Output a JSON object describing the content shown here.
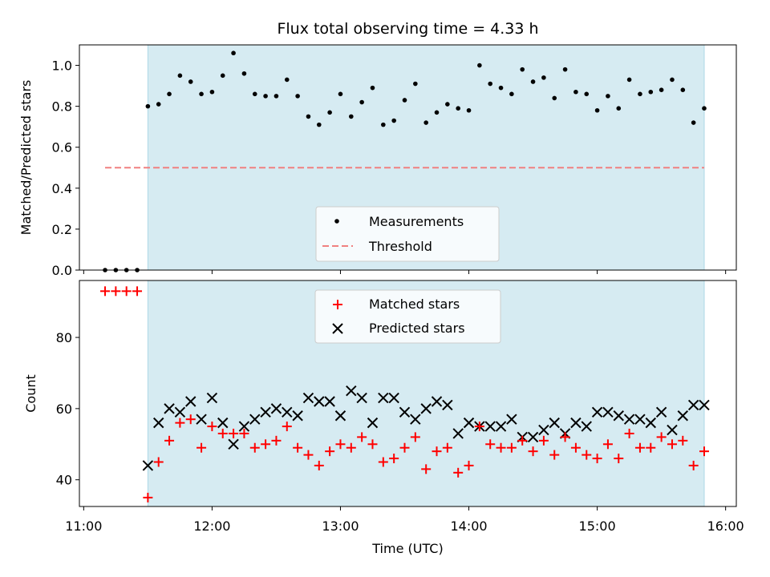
{
  "chart_data": [
    {
      "type": "scatter",
      "title": "Flux total observing time = 4.33 h",
      "ylabel": "Matched/Predicted stars",
      "xlim": [
        "10:58",
        "16:05"
      ],
      "ylim": [
        0,
        1.1
      ],
      "yticks": [
        0.0,
        0.2,
        0.4,
        0.6,
        0.8,
        1.0
      ],
      "yticklabels": [
        "0.0",
        "0.2",
        "0.4",
        "0.6",
        "0.8",
        "1.0"
      ],
      "shaded_span": [
        "11:30",
        "15:50"
      ],
      "shade_color": "#add8e6",
      "legend_loc": "lower center",
      "threshold": {
        "name": "Threshold",
        "value": 0.5,
        "x_range": [
          "11:10",
          "15:50"
        ],
        "color": "#f08080"
      },
      "series": [
        {
          "name": "Measurements",
          "color": "#000000",
          "x": [
            "11:10",
            "11:15",
            "11:20",
            "11:25",
            "11:30",
            "11:35",
            "11:40",
            "11:45",
            "11:50",
            "11:55",
            "12:00",
            "12:05",
            "12:10",
            "12:15",
            "12:20",
            "12:25",
            "12:30",
            "12:35",
            "12:40",
            "12:45",
            "12:50",
            "12:55",
            "13:00",
            "13:05",
            "13:10",
            "13:15",
            "13:20",
            "13:25",
            "13:30",
            "13:35",
            "13:40",
            "13:45",
            "13:50",
            "13:55",
            "14:00",
            "14:05",
            "14:10",
            "14:15",
            "14:20",
            "14:25",
            "14:30",
            "14:35",
            "14:40",
            "14:45",
            "14:50",
            "14:55",
            "15:00",
            "15:05",
            "15:10",
            "15:15",
            "15:20",
            "15:25",
            "15:30",
            "15:35",
            "15:40",
            "15:45",
            "15:50"
          ],
          "y": [
            0.0,
            0.0,
            0.0,
            0.0,
            0.8,
            0.81,
            0.86,
            0.95,
            0.92,
            0.86,
            0.87,
            0.95,
            1.06,
            0.96,
            0.86,
            0.85,
            0.85,
            0.93,
            0.85,
            0.75,
            0.71,
            0.77,
            0.86,
            0.75,
            0.82,
            0.89,
            0.71,
            0.73,
            0.83,
            0.91,
            0.72,
            0.77,
            0.81,
            0.79,
            0.78,
            1.0,
            0.91,
            0.89,
            0.86,
            0.98,
            0.92,
            0.94,
            0.84,
            0.98,
            0.87,
            0.86,
            0.78,
            0.85,
            0.79,
            0.93,
            0.86,
            0.87,
            0.88,
            0.93,
            0.88,
            0.72,
            0.79
          ]
        }
      ]
    },
    {
      "type": "scatter",
      "xlabel": "Time (UTC)",
      "ylabel": "Count",
      "xlim": [
        "10:58",
        "16:05"
      ],
      "ylim": [
        32.5,
        96
      ],
      "yticks": [
        40,
        60,
        80
      ],
      "yticklabels": [
        "40",
        "60",
        "80"
      ],
      "xticks": [
        "11:00",
        "12:00",
        "13:00",
        "14:00",
        "15:00",
        "16:00"
      ],
      "xticklabels": [
        "11:00",
        "12:00",
        "13:00",
        "14:00",
        "15:00",
        "16:00"
      ],
      "shaded_span": [
        "11:30",
        "15:50"
      ],
      "shade_color": "#add8e6",
      "legend_loc": "upper center",
      "series": [
        {
          "name": "Matched stars",
          "marker": "+",
          "color": "#ff0000",
          "x": [
            "11:10",
            "11:15",
            "11:20",
            "11:25",
            "11:30",
            "11:35",
            "11:40",
            "11:45",
            "11:50",
            "11:55",
            "12:00",
            "12:05",
            "12:10",
            "12:15",
            "12:20",
            "12:25",
            "12:30",
            "12:35",
            "12:40",
            "12:45",
            "12:50",
            "12:55",
            "13:00",
            "13:05",
            "13:10",
            "13:15",
            "13:20",
            "13:25",
            "13:30",
            "13:35",
            "13:40",
            "13:45",
            "13:50",
            "13:55",
            "14:00",
            "14:05",
            "14:10",
            "14:15",
            "14:20",
            "14:25",
            "14:30",
            "14:35",
            "14:40",
            "14:45",
            "14:50",
            "14:55",
            "15:00",
            "15:05",
            "15:10",
            "15:15",
            "15:20",
            "15:25",
            "15:30",
            "15:35",
            "15:40",
            "15:45",
            "15:50"
          ],
          "y": [
            93,
            93,
            93,
            93,
            35,
            45,
            51,
            56,
            57,
            49,
            55,
            53,
            53,
            53,
            49,
            50,
            51,
            55,
            49,
            47,
            44,
            48,
            50,
            49,
            52,
            50,
            45,
            46,
            49,
            52,
            43,
            48,
            49,
            42,
            44,
            55,
            50,
            49,
            49,
            51,
            48,
            51,
            47,
            52,
            49,
            47,
            46,
            50,
            46,
            53,
            49,
            49,
            52,
            50,
            51,
            44,
            48
          ]
        },
        {
          "name": "Predicted stars",
          "marker": "x",
          "color": "#000000",
          "x": [
            "11:30",
            "11:35",
            "11:40",
            "11:45",
            "11:50",
            "11:55",
            "12:00",
            "12:05",
            "12:10",
            "12:15",
            "12:20",
            "12:25",
            "12:30",
            "12:35",
            "12:40",
            "12:45",
            "12:50",
            "12:55",
            "13:00",
            "13:05",
            "13:10",
            "13:15",
            "13:20",
            "13:25",
            "13:30",
            "13:35",
            "13:40",
            "13:45",
            "13:50",
            "13:55",
            "14:00",
            "14:05",
            "14:10",
            "14:15",
            "14:20",
            "14:25",
            "14:30",
            "14:35",
            "14:40",
            "14:45",
            "14:50",
            "14:55",
            "15:00",
            "15:05",
            "15:10",
            "15:15",
            "15:20",
            "15:25",
            "15:30",
            "15:35",
            "15:40",
            "15:45",
            "15:50"
          ],
          "y": [
            44,
            56,
            60,
            59,
            62,
            57,
            63,
            56,
            50,
            55,
            57,
            59,
            60,
            59,
            58,
            63,
            62,
            62,
            58,
            65,
            63,
            56,
            63,
            63,
            59,
            57,
            60,
            62,
            61,
            53,
            56,
            55,
            55,
            55,
            57,
            52,
            52,
            54,
            56,
            53,
            56,
            55,
            59,
            59,
            58,
            57,
            57,
            56,
            59,
            54,
            58,
            61,
            61
          ]
        }
      ]
    }
  ]
}
